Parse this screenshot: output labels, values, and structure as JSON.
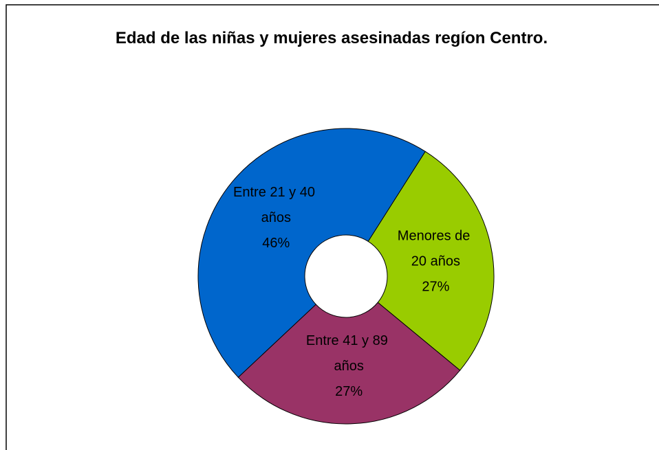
{
  "chart_data": {
    "type": "pie",
    "title": "Edad de las niñas y mujeres asesinadas regíon Centro.",
    "categories": [
      "Menores de 20 años",
      "Entre 41 y 89 años",
      "Entre 21 y 40 años"
    ],
    "values": [
      27,
      27,
      46
    ],
    "value_labels": [
      "27%",
      "27%",
      "46%"
    ],
    "colors": [
      "#99cc00",
      "#993366",
      "#0066cc"
    ],
    "donut": true
  }
}
